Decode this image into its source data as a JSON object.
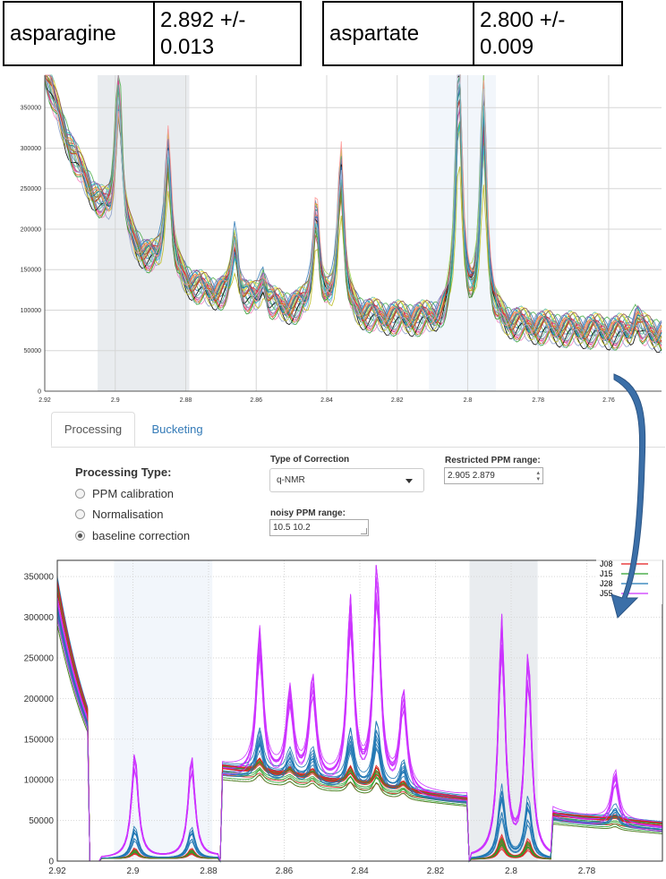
{
  "result_boxes": [
    {
      "name": "asparagine",
      "value": "2.892 +/-",
      "value2": "0.013"
    },
    {
      "name": "aspartate",
      "value": "2.800 +/-",
      "value2": "0.009"
    }
  ],
  "tabs": [
    {
      "label": "Processing",
      "active": true
    },
    {
      "label": "Bucketing",
      "active": false
    }
  ],
  "processing_type": {
    "label": "Processing Type:",
    "options": [
      {
        "label": "PPM calibration",
        "checked": false
      },
      {
        "label": "Normalisation",
        "checked": false
      },
      {
        "label": "baseline correction",
        "checked": true
      }
    ]
  },
  "correction": {
    "label": "Type of Correction",
    "value": "q-NMR"
  },
  "restricted_range": {
    "label": "Restricted PPM range:",
    "value": "2.905 2.879"
  },
  "noisy_range": {
    "label": "noisy PPM range:",
    "value": "10.5 10.2"
  },
  "colors": {
    "accent": "#337ab7",
    "arrow": "#3b6fa8",
    "shade_dark": "#e9ecef",
    "shade_light": "#f2f6fb"
  },
  "chart_data": [
    {
      "type": "line",
      "x_reversed": true,
      "xlim": [
        2.92,
        2.745
      ],
      "ylim": [
        0,
        390000
      ],
      "x_ticks": [
        2.92,
        2.9,
        2.88,
        2.86,
        2.84,
        2.82,
        2.8,
        2.78,
        2.76
      ],
      "x_tick_labels": [
        "2.92",
        "2.9",
        "2.88",
        "2.86",
        "2.84",
        "2.82",
        "2.8",
        "2.78",
        "2.76"
      ],
      "y_ticks": [
        0,
        50000,
        100000,
        150000,
        200000,
        250000,
        300000,
        350000
      ],
      "y_tick_labels": [
        "0",
        "50000",
        "100000",
        "150000",
        "200000",
        "250000",
        "300000",
        "350000"
      ],
      "grid": true,
      "shaded_regions": [
        [
          2.905,
          2.879
        ],
        [
          2.811,
          2.792
        ]
      ],
      "peaks": [
        {
          "x": 2.899,
          "y": 350000
        },
        {
          "x": 2.885,
          "y": 285000
        },
        {
          "x": 2.866,
          "y": 205000
        },
        {
          "x": 2.858,
          "y": 170000
        },
        {
          "x": 2.843,
          "y": 255000
        },
        {
          "x": 2.836,
          "y": 308000
        },
        {
          "x": 2.8025,
          "y": 390000
        },
        {
          "x": 2.7955,
          "y": 345000
        },
        {
          "x": 2.752,
          "y": 125000
        }
      ],
      "series_count": 30
    },
    {
      "type": "line",
      "x_reversed": true,
      "xlim": [
        2.92,
        2.76
      ],
      "ylim": [
        0,
        370000
      ],
      "x_ticks": [
        2.92,
        2.9,
        2.88,
        2.86,
        2.84,
        2.82,
        2.8,
        2.78
      ],
      "x_tick_labels": [
        "2.92",
        "2.9",
        "2.88",
        "2.86",
        "2.84",
        "2.82",
        "2.8",
        "2.78"
      ],
      "y_ticks": [
        0,
        50000,
        100000,
        150000,
        200000,
        250000,
        300000,
        350000
      ],
      "y_tick_labels": [
        "0",
        "50000",
        "100000",
        "150000",
        "200000",
        "250000",
        "300000",
        "350000"
      ],
      "grid": true,
      "shaded_regions": [
        [
          2.905,
          2.879
        ],
        [
          2.811,
          2.793
        ]
      ],
      "legend_position": "top-right",
      "series": [
        {
          "name": "J08",
          "color": "#e41a1c"
        },
        {
          "name": "J15",
          "color": "#2ca02c"
        },
        {
          "name": "J28",
          "color": "#1f77b4"
        },
        {
          "name": "J55",
          "color": "#cc33ff"
        }
      ],
      "peaks": [
        {
          "x": 2.8995,
          "y": 135000
        },
        {
          "x": 2.8845,
          "y": 130000
        },
        {
          "x": 2.8665,
          "y": 185000
        },
        {
          "x": 2.8585,
          "y": 110000
        },
        {
          "x": 2.8525,
          "y": 130000
        },
        {
          "x": 2.8425,
          "y": 235000
        },
        {
          "x": 2.8355,
          "y": 285000
        },
        {
          "x": 2.8285,
          "y": 125000
        },
        {
          "x": 2.8025,
          "y": 305000
        },
        {
          "x": 2.7955,
          "y": 260000
        },
        {
          "x": 2.7725,
          "y": 65000
        }
      ]
    }
  ]
}
